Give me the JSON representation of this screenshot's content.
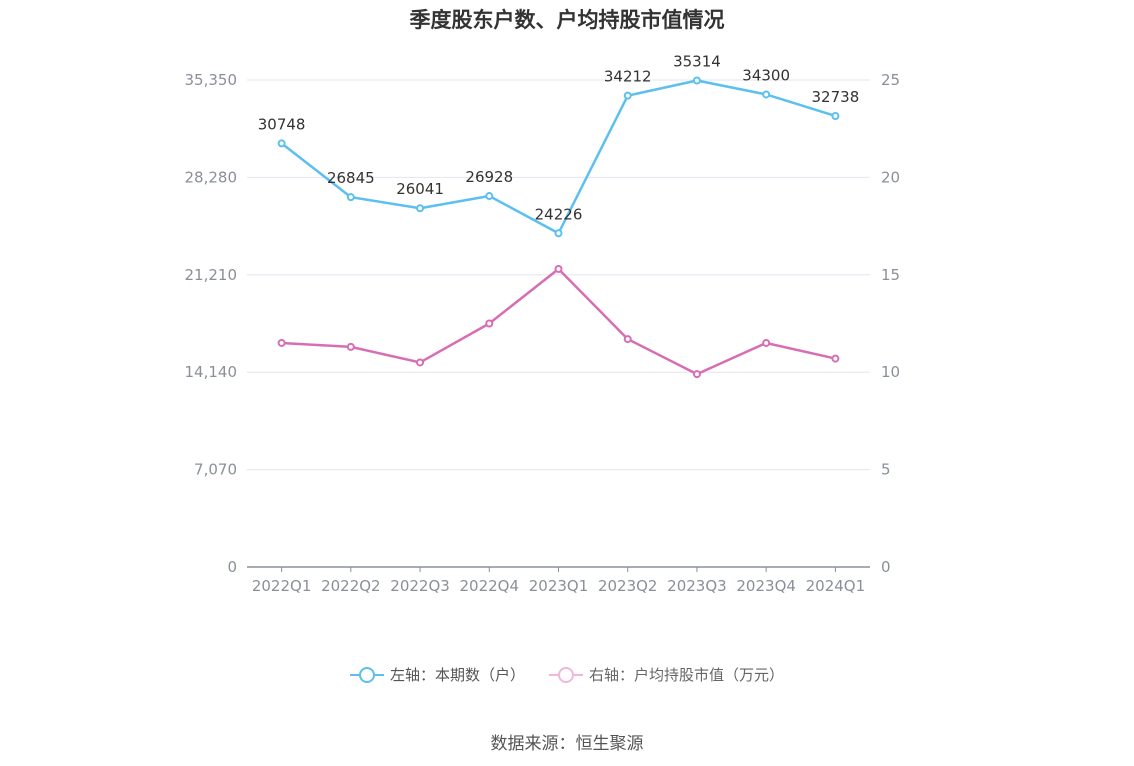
{
  "chart_data": {
    "type": "line",
    "title": "季度股东户数、户均持股市值情况",
    "categories": [
      "2022Q1",
      "2022Q2",
      "2022Q3",
      "2022Q4",
      "2023Q1",
      "2023Q2",
      "2023Q3",
      "2023Q4",
      "2024Q1"
    ],
    "left_axis": {
      "ticks": [
        "0",
        "7,070",
        "14,140",
        "21,210",
        "28,280",
        "35,350"
      ],
      "ylim": [
        0,
        35350
      ]
    },
    "right_axis": {
      "ticks": [
        "0",
        "5",
        "10",
        "15",
        "20",
        "25"
      ],
      "ylim": [
        0,
        25
      ]
    },
    "grid": true,
    "legend_position": "bottom",
    "series": [
      {
        "name": "左轴：本期数（户）",
        "axis": "left",
        "color": "#5bc0f0",
        "values": [
          30748,
          26845,
          26041,
          26928,
          24226,
          34212,
          35314,
          34300,
          32738
        ],
        "labels": [
          "30748",
          "26845",
          "26041",
          "26928",
          "24226",
          "34212",
          "35314",
          "34300",
          "32738"
        ]
      },
      {
        "name": "右轴：户均持股市值（万元）",
        "axis": "right",
        "color": "#d76eb4",
        "values": [
          11.5,
          11.3,
          10.5,
          12.5,
          15.3,
          11.7,
          9.9,
          11.5,
          10.7
        ]
      }
    ]
  },
  "legend": {
    "item1": "左轴：本期数（户）",
    "item2": "右轴：户均持股市值（万元）",
    "item2_color": "#f2b6d8"
  },
  "source": "数据来源：恒生聚源"
}
